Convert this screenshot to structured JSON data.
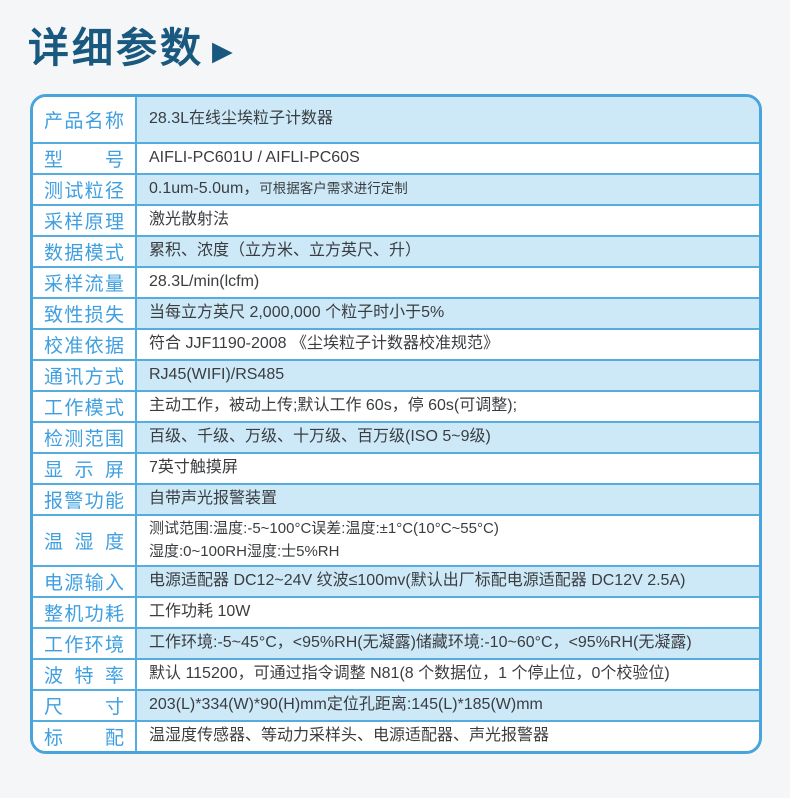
{
  "title": {
    "text": "详细参数",
    "arrow": "▶"
  },
  "colors": {
    "title_text": "#19587f",
    "table_border": "#4aa4dc",
    "row_separator": "#55acdf",
    "alt_row_bg": "#cde9f8",
    "label_text": "#3f9fe0",
    "value_text": "#3a3d40",
    "page_bg": "#f5f6f7"
  },
  "table": {
    "rows": [
      {
        "label": "产品名称",
        "value": "28.3L在线尘埃粒子计数器"
      },
      {
        "label": "型号",
        "value": "AIFLI-PC601U / AIFLI-PC60S"
      },
      {
        "label": "测试粒径",
        "value": "0.1um-5.0um，",
        "note": "可根据客户需求进行定制"
      },
      {
        "label": "采样原理",
        "value": "激光散射法"
      },
      {
        "label": "数据模式",
        "value": "累积、浓度（立方米、立方英尺、升）"
      },
      {
        "label": "采样流量",
        "value": "28.3L/min(lcfm)"
      },
      {
        "label": "致性损失",
        "value": "当每立方英尺 2,000,000 个粒子时小于5%"
      },
      {
        "label": "校准依据",
        "value": "符合 JJF1190-2008 《尘埃粒子计数器校准规范》"
      },
      {
        "label": "通讯方式",
        "value": "RJ45(WIFI)/RS485"
      },
      {
        "label": "工作模式",
        "value": "主动工作，被动上传;默认工作 60s，停 60s(可调整);"
      },
      {
        "label": "检测范围",
        "value": "百级、千级、万级、十万级、百万级(ISO 5~9级)"
      },
      {
        "label": "显示屏",
        "value": "7英寸触摸屏"
      },
      {
        "label": "报警功能",
        "value": "自带声光报警装置"
      },
      {
        "label": "温湿度",
        "value": "测试范围:温度:-5~100°C误差:温度:±1°C(10°C~55°C)",
        "value2": "湿度:0~100RH湿度:士5%RH"
      },
      {
        "label": "电源输入",
        "value": "电源适配器 DC12~24V 纹波≤100mv(默认出厂标配电源适配器 DC12V 2.5A)"
      },
      {
        "label": "整机功耗",
        "value": "工作功耗 10W"
      },
      {
        "label": "工作环境",
        "value": "工作环境:-5~45°C，<95%RH(无凝露)储藏环境:-10~60°C，<95%RH(无凝露)"
      },
      {
        "label": "波特率",
        "value": "默认 115200，可通过指令调整 N81(8 个数据位，1 个停止位，0个校验位)"
      },
      {
        "label": "尺寸",
        "value": "203(L)*334(W)*90(H)mm定位孔距离:145(L)*185(W)mm"
      },
      {
        "label": "标配",
        "value": "温湿度传感器、等动力采样头、电源适配器、声光报警器"
      }
    ]
  }
}
